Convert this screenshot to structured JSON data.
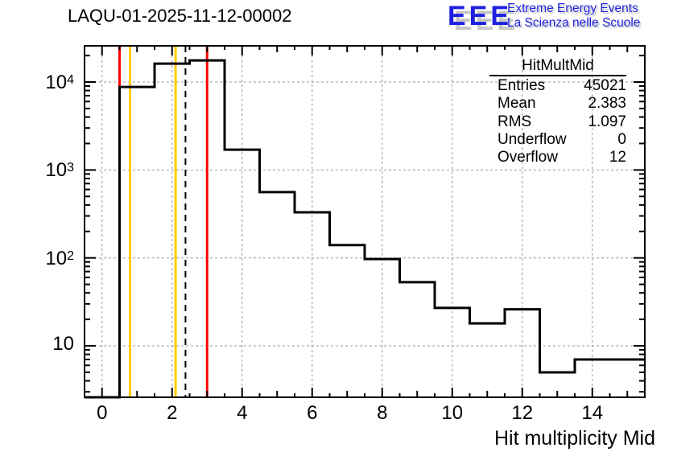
{
  "page": {
    "title": "LAQU-01-2025-11-12-00002"
  },
  "logo": {
    "acronym": "EEE",
    "line1": "Extreme Energy Events",
    "line2": "La Scienza nelle Scuole",
    "color": "#1e1ee0",
    "shadow_color": "#c6c6c6"
  },
  "stats_box": {
    "title": "HitMultMid",
    "rows": [
      {
        "label": "Entries",
        "value": "45021"
      },
      {
        "label": "Mean",
        "value": "2.383"
      },
      {
        "label": "RMS",
        "value": "1.097"
      },
      {
        "label": "Underflow",
        "value": "0"
      },
      {
        "label": "Overflow",
        "value": "12"
      }
    ]
  },
  "chart_data": {
    "type": "bar",
    "style": "step-histogram-outline",
    "title": "LAQU-01-2025-11-12-00002",
    "xlabel": "Hit multiplicity Mid",
    "ylabel": "",
    "yscale": "log",
    "xlim": [
      -0.5,
      15.5
    ],
    "ylim": [
      2.6,
      25800
    ],
    "grid": true,
    "bin_width": 1,
    "bin_centers": [
      0,
      1,
      2,
      3,
      4,
      5,
      6,
      7,
      8,
      9,
      10,
      11,
      12,
      13,
      14,
      15
    ],
    "values": [
      0,
      8800,
      16200,
      17600,
      1700,
      560,
      330,
      140,
      97,
      53,
      27,
      18,
      26,
      5,
      7,
      7
    ],
    "x_major_ticks": [
      0,
      2,
      4,
      6,
      8,
      10,
      12,
      14
    ],
    "x_tick_labels": [
      "0",
      "2",
      "4",
      "6",
      "8",
      "10",
      "12",
      "14"
    ],
    "y_major_ticks": [
      10,
      100,
      1000,
      10000
    ],
    "y_tick_labels": [
      {
        "base": "10",
        "sup": "",
        "value": 10
      },
      {
        "base": "10",
        "sup": "2",
        "value": 100
      },
      {
        "base": "10",
        "sup": "3",
        "value": 1000
      },
      {
        "base": "10",
        "sup": "4",
        "value": 10000
      }
    ],
    "marker_lines": [
      {
        "x": 0.5,
        "color": "#ff0000",
        "style": "solid",
        "name": "red-lower-limit-line"
      },
      {
        "x": 0.8,
        "color": "#ffcc00",
        "style": "solid",
        "name": "yellow-lower-limit-line"
      },
      {
        "x": 2.1,
        "color": "#ffcc00",
        "style": "solid",
        "name": "yellow-upper-limit-line"
      },
      {
        "x": 3.0,
        "color": "#ff0000",
        "style": "solid",
        "name": "red-upper-limit-line"
      },
      {
        "x": 2.383,
        "color": "#000000",
        "style": "dashed",
        "name": "mean-line"
      }
    ],
    "colors": {
      "histogram": "#000000",
      "grid": "#9a9a9a",
      "frame": "#000000"
    },
    "legend_position": "none"
  }
}
